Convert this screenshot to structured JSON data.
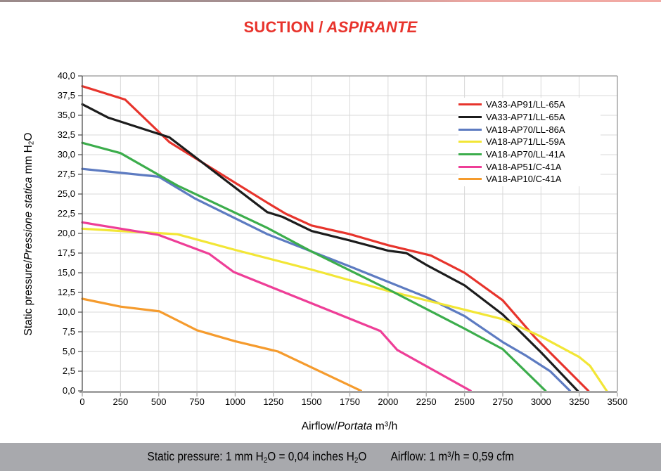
{
  "title": {
    "part1": "SUCTION /",
    "part2": "ASPIRANTE",
    "color": "#e8332c"
  },
  "footer": {
    "bar_color": "#a8a9ad",
    "left_1": "Static pressure: 1 mm H",
    "left_sub1": "2",
    "left_2": "O = 0,04 inches H",
    "left_sub2": "2",
    "left_3": "O",
    "right_1": "Airflow: 1 m",
    "right_sup": "3",
    "right_2": "/h = 0,59 cfm"
  },
  "chart_data": {
    "type": "line",
    "title": "SUCTION / ASPIRANTE",
    "grid": true,
    "legend_position": "top-right",
    "grid_color": "#d9d9d9",
    "axis_color": "#a6a6a6",
    "y_axis_line_color": "#4d4d4d",
    "x_axis": {
      "label_en": "Airflow/",
      "label_it": "Portata",
      "unit_1": " m",
      "unit_sup": "3",
      "unit_2": "/h",
      "min": 0,
      "max": 3500,
      "tick_step": 250,
      "tick_labels": [
        "0",
        "250",
        "500",
        "750",
        "1000",
        "1250",
        "1500",
        "1750",
        "2000",
        "2250",
        "2500",
        "2750",
        "3000",
        "3250",
        "3500"
      ]
    },
    "y_axis": {
      "label_en": "Static pressure/",
      "label_it": "Pressione statica",
      "unit_1": " mm H",
      "unit_sub": "2",
      "unit_2": "O",
      "min": 0,
      "max": 40,
      "tick_step": 2.5,
      "tick_labels": [
        "0,0",
        "2,5",
        "5,0",
        "7,5",
        "10,0",
        "12,5",
        "15,0",
        "17,5",
        "20,0",
        "22,5",
        "25,0",
        "27,5",
        "30,0",
        "32,5",
        "35,0",
        "37,5",
        "40,0"
      ]
    },
    "series": [
      {
        "name": "VA33-AP91/LL-65A",
        "color": "#e7342c",
        "points": [
          [
            0,
            38.7
          ],
          [
            280,
            37.0
          ],
          [
            570,
            31.6
          ],
          [
            1210,
            23.9
          ],
          [
            1330,
            22.5
          ],
          [
            1500,
            21.0
          ],
          [
            1750,
            19.9
          ],
          [
            2000,
            18.5
          ],
          [
            2280,
            17.2
          ],
          [
            2500,
            15.0
          ],
          [
            2750,
            11.5
          ],
          [
            2960,
            6.8
          ],
          [
            3310,
            0
          ]
        ]
      },
      {
        "name": "VA33-AP71/LL-65A",
        "color": "#1c1c1c",
        "points": [
          [
            0,
            36.4
          ],
          [
            170,
            34.7
          ],
          [
            570,
            32.2
          ],
          [
            1210,
            22.7
          ],
          [
            1310,
            22.1
          ],
          [
            1500,
            20.3
          ],
          [
            1750,
            19.1
          ],
          [
            2000,
            17.8
          ],
          [
            2120,
            17.5
          ],
          [
            2250,
            16.0
          ],
          [
            2500,
            13.4
          ],
          [
            2750,
            9.7
          ],
          [
            3000,
            4.9
          ],
          [
            3240,
            0
          ]
        ]
      },
      {
        "name": "VA18-AP70/LL-86A",
        "color": "#5d7bc1",
        "points": [
          [
            0,
            28.2
          ],
          [
            500,
            27.2
          ],
          [
            740,
            24.4
          ],
          [
            1210,
            19.9
          ],
          [
            1750,
            15.8
          ],
          [
            2250,
            11.9
          ],
          [
            2500,
            9.5
          ],
          [
            2750,
            6.2
          ],
          [
            2900,
            4.5
          ],
          [
            3060,
            2.5
          ],
          [
            3190,
            0
          ]
        ]
      },
      {
        "name": "VA18-AP71/LL-59A",
        "color": "#f2e636",
        "points": [
          [
            0,
            20.6
          ],
          [
            250,
            20.3
          ],
          [
            620,
            19.9
          ],
          [
            1000,
            17.9
          ],
          [
            1500,
            15.4
          ],
          [
            2000,
            12.7
          ],
          [
            2500,
            10.3
          ],
          [
            2750,
            9.1
          ],
          [
            3000,
            6.9
          ],
          [
            3250,
            4.3
          ],
          [
            3320,
            3.2
          ],
          [
            3430,
            0
          ]
        ]
      },
      {
        "name": "VA18-AP70/LL-41A",
        "color": "#3cad4c",
        "points": [
          [
            0,
            31.5
          ],
          [
            250,
            30.2
          ],
          [
            620,
            26.1
          ],
          [
            1210,
            20.7
          ],
          [
            1500,
            17.7
          ],
          [
            2000,
            12.9
          ],
          [
            2500,
            7.9
          ],
          [
            2750,
            5.3
          ],
          [
            3030,
            0
          ]
        ]
      },
      {
        "name": "VA18-AP51/C-41A",
        "color": "#ee3e97",
        "points": [
          [
            0,
            21.4
          ],
          [
            500,
            19.8
          ],
          [
            830,
            17.4
          ],
          [
            990,
            15.1
          ],
          [
            1950,
            7.6
          ],
          [
            2060,
            5.2
          ],
          [
            2540,
            0
          ]
        ]
      },
      {
        "name": "VA18-AP10/C-41A",
        "color": "#f59b2d",
        "points": [
          [
            0,
            11.7
          ],
          [
            250,
            10.7
          ],
          [
            505,
            10.1
          ],
          [
            750,
            7.7
          ],
          [
            1000,
            6.3
          ],
          [
            1280,
            5.0
          ],
          [
            1823,
            0
          ]
        ]
      }
    ]
  }
}
